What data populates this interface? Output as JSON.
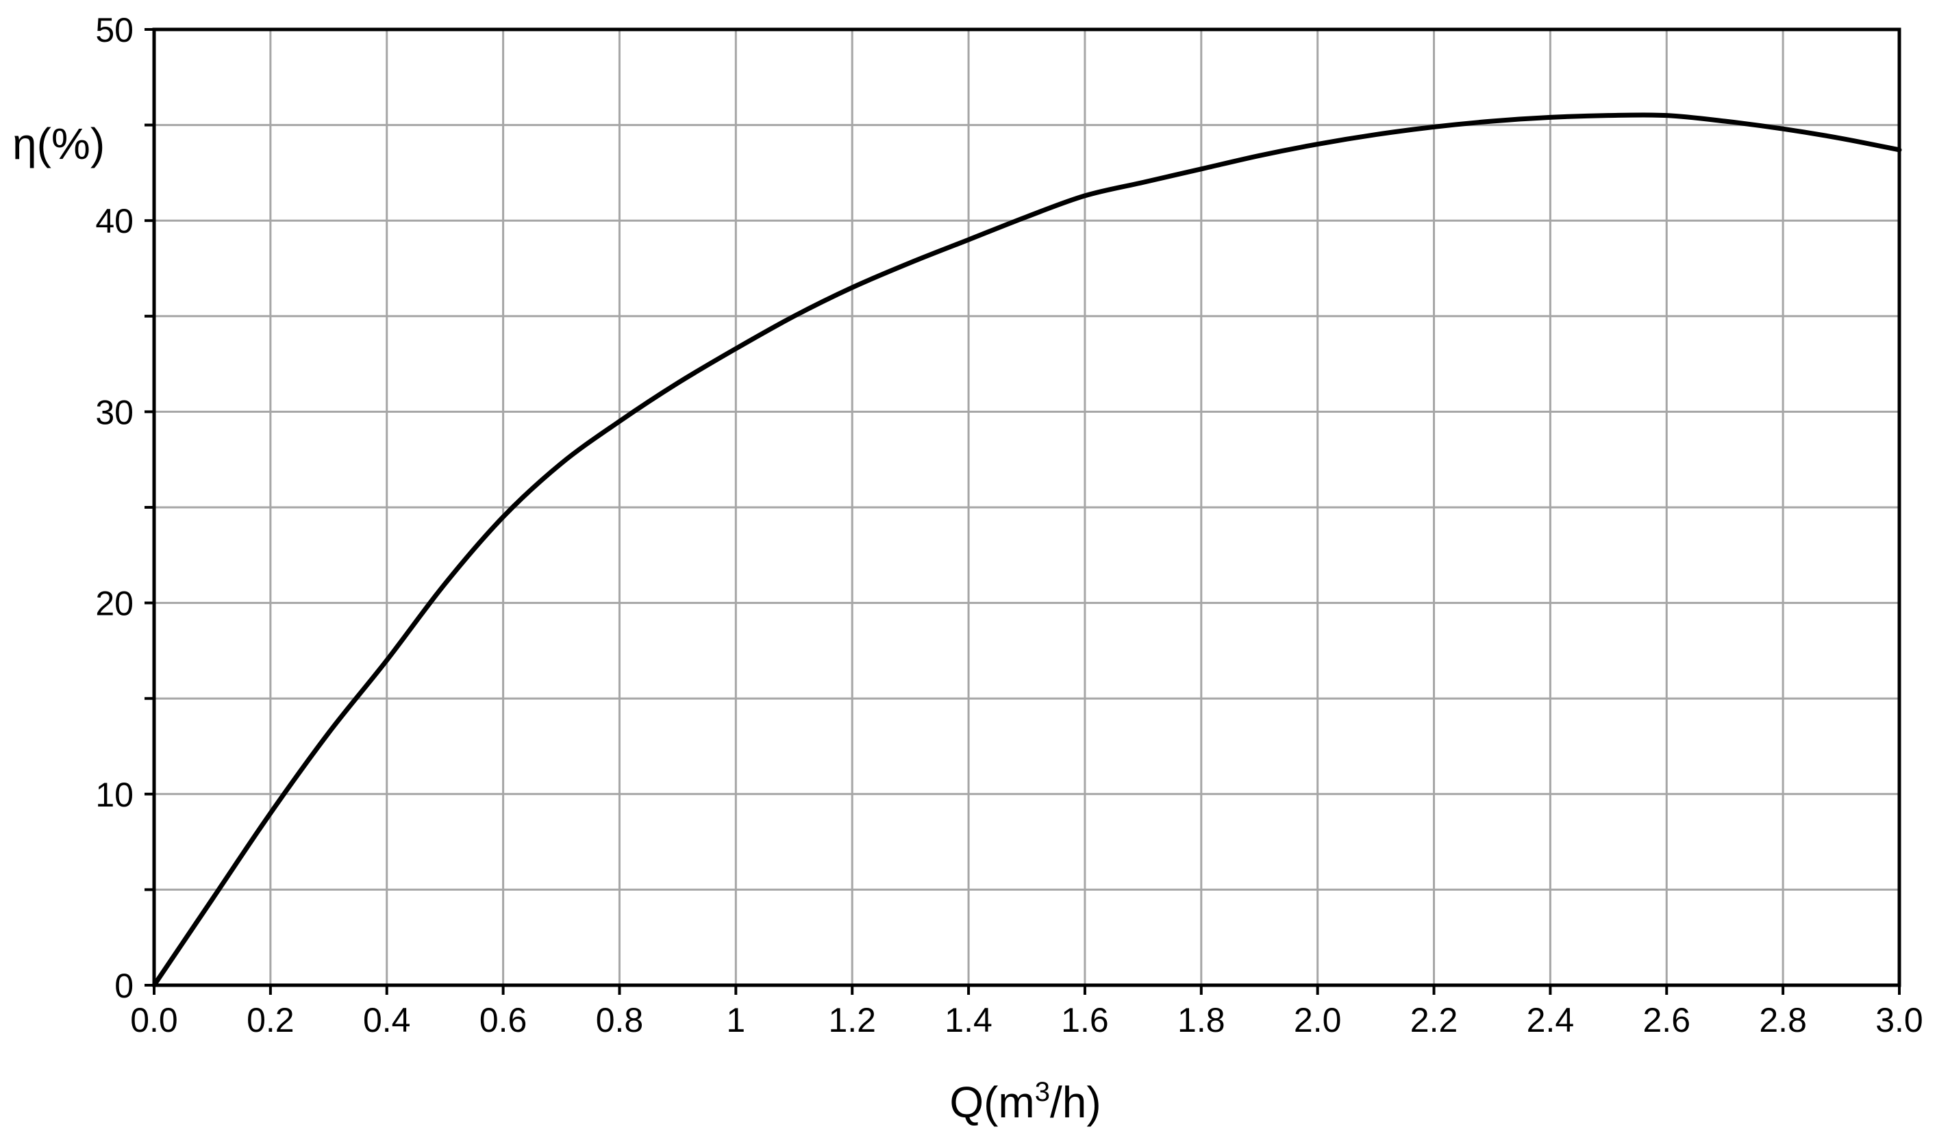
{
  "chart_data": {
    "type": "line",
    "title": "",
    "xlabel": {
      "prefix": "Q(m",
      "superscript": "3",
      "suffix": "/h)"
    },
    "ylabel": "η(%)",
    "xlim": [
      0,
      3.0
    ],
    "ylim": [
      0,
      50
    ],
    "x_ticks": [
      {
        "value": 0.0,
        "label": "0.0"
      },
      {
        "value": 0.2,
        "label": "0.2"
      },
      {
        "value": 0.4,
        "label": "0.4"
      },
      {
        "value": 0.6,
        "label": "0.6"
      },
      {
        "value": 0.8,
        "label": "0.8"
      },
      {
        "value": 1.0,
        "label": "1"
      },
      {
        "value": 1.2,
        "label": "1.2"
      },
      {
        "value": 1.4,
        "label": "1.4"
      },
      {
        "value": 1.6,
        "label": "1.6"
      },
      {
        "value": 1.8,
        "label": "1.8"
      },
      {
        "value": 2.0,
        "label": "2.0"
      },
      {
        "value": 2.2,
        "label": "2.2"
      },
      {
        "value": 2.4,
        "label": "2.4"
      },
      {
        "value": 2.6,
        "label": "2.6"
      },
      {
        "value": 2.8,
        "label": "2.8"
      },
      {
        "value": 3.0,
        "label": "3.0"
      }
    ],
    "y_ticks": [
      {
        "value": 0,
        "label": "0"
      },
      {
        "value": 10,
        "label": "10"
      },
      {
        "value": 20,
        "label": "20"
      },
      {
        "value": 30,
        "label": "30"
      },
      {
        "value": 40,
        "label": "40"
      },
      {
        "value": 50,
        "label": "50"
      }
    ],
    "y_gridlines": [
      0,
      5,
      10,
      15,
      20,
      25,
      30,
      35,
      40,
      45,
      50
    ],
    "grid": true,
    "legend": "none",
    "colors": {
      "curve": "#000000",
      "grid": "#a6a6a6",
      "frame": "#000000",
      "background": "#ffffff"
    },
    "series": [
      {
        "x": [
          0.0,
          0.1,
          0.2,
          0.3,
          0.4,
          0.5,
          0.6,
          0.7,
          0.8,
          0.9,
          1.0,
          1.1,
          1.2,
          1.3,
          1.4,
          1.5,
          1.6,
          1.7,
          1.8,
          1.9,
          2.0,
          2.1,
          2.2,
          2.3,
          2.4,
          2.5,
          2.6,
          2.7,
          2.8,
          2.9,
          3.0
        ],
        "y": [
          0.0,
          4.5,
          9.0,
          13.2,
          17.0,
          21.0,
          24.5,
          27.3,
          29.5,
          31.5,
          33.3,
          35.0,
          36.5,
          37.8,
          39.0,
          40.2,
          41.3,
          42.0,
          42.7,
          43.4,
          44.0,
          44.5,
          44.9,
          45.2,
          45.4,
          45.5,
          45.5,
          45.2,
          44.8,
          44.3,
          43.7
        ]
      }
    ]
  }
}
